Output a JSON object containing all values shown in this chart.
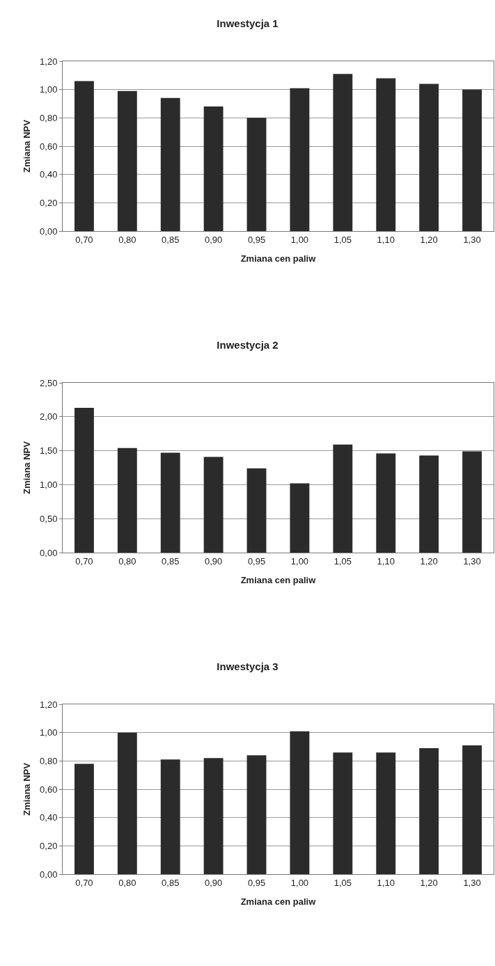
{
  "chart_data": [
    {
      "type": "bar",
      "title": "Inwestycja 1",
      "xlabel": "Zmiana cen paliw",
      "ylabel": "Zmiana NPV",
      "categories": [
        "0,70",
        "0,80",
        "0,85",
        "0,90",
        "0,95",
        "1,00",
        "1,05",
        "1,10",
        "1,20",
        "1,30"
      ],
      "values": [
        1.06,
        0.99,
        0.94,
        0.88,
        0.8,
        1.01,
        1.11,
        1.08,
        1.04,
        1.0
      ],
      "color": "#2b2b2b",
      "ylim": [
        0,
        1.2
      ],
      "yticks": [
        {
          "value": 0,
          "label": "0,00"
        },
        {
          "value": 0.2,
          "label": "0,20"
        },
        {
          "value": 0.4,
          "label": "0,40"
        },
        {
          "value": 0.6,
          "label": "0,60"
        },
        {
          "value": 0.8,
          "label": "0,80"
        },
        {
          "value": 1.0,
          "label": "1,00"
        },
        {
          "value": 1.2,
          "label": "1,20"
        }
      ],
      "grid": "y",
      "legend": false
    },
    {
      "type": "bar",
      "title": "Inwestycja 2",
      "xlabel": "Zmiana cen paliw",
      "ylabel": "Zmiana NPV",
      "categories": [
        "0,70",
        "0,80",
        "0,85",
        "0,90",
        "0,95",
        "1,00",
        "1,05",
        "1,10",
        "1,20",
        "1,30"
      ],
      "values": [
        2.13,
        1.54,
        1.47,
        1.41,
        1.24,
        1.02,
        1.59,
        1.46,
        1.43,
        1.49
      ],
      "color": "#2b2b2b",
      "ylim": [
        0,
        2.5
      ],
      "yticks": [
        {
          "value": 0,
          "label": "0,00"
        },
        {
          "value": 0.5,
          "label": "0,50"
        },
        {
          "value": 1.0,
          "label": "1,00"
        },
        {
          "value": 1.5,
          "label": "1,50"
        },
        {
          "value": 2.0,
          "label": "2,00"
        },
        {
          "value": 2.5,
          "label": "2,50"
        }
      ],
      "grid": "y",
      "legend": false
    },
    {
      "type": "bar",
      "title": "Inwestycja 3",
      "xlabel": "Zmiana cen paliw",
      "ylabel": "Zmiana NPV",
      "categories": [
        "0,70",
        "0,80",
        "0,85",
        "0,90",
        "0,95",
        "1,00",
        "1,05",
        "1,10",
        "1,20",
        "1,30"
      ],
      "values": [
        0.78,
        1.0,
        0.81,
        0.82,
        0.84,
        1.01,
        0.86,
        0.86,
        0.89,
        0.91
      ],
      "color": "#2b2b2b",
      "ylim": [
        0,
        1.2
      ],
      "yticks": [
        {
          "value": 0,
          "label": "0,00"
        },
        {
          "value": 0.2,
          "label": "0,20"
        },
        {
          "value": 0.4,
          "label": "0,40"
        },
        {
          "value": 0.6,
          "label": "0,60"
        },
        {
          "value": 0.8,
          "label": "0,80"
        },
        {
          "value": 1.0,
          "label": "1,00"
        },
        {
          "value": 1.2,
          "label": "1,20"
        }
      ],
      "grid": "y",
      "legend": false
    }
  ]
}
